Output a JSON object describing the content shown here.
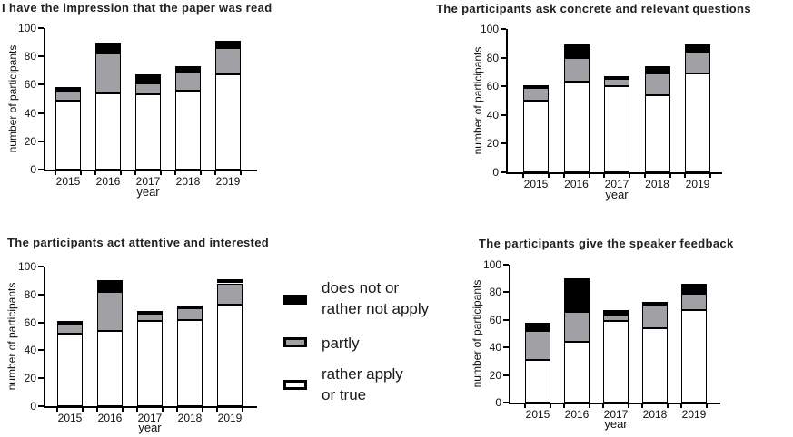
{
  "figure": {
    "background": "#ffffff",
    "palette": {
      "black": "#000000",
      "gray": "#a0a0a5",
      "white": "#ffffff",
      "axis": "#000000"
    }
  },
  "legend": {
    "position": "center of figure, right of bottom-left chart",
    "items": [
      {
        "lines": [
          "does not or",
          "rather not apply"
        ],
        "color": "#000000"
      },
      {
        "lines": [
          "partly"
        ],
        "color": "#a0a0a5"
      },
      {
        "lines": [
          "rather apply",
          "or true"
        ],
        "color": "#ffffff"
      }
    ]
  },
  "chart_data": [
    {
      "type": "bar",
      "subtype": "stacked",
      "title": "I have the impression that the paper was read",
      "xlabel": "year",
      "ylabel": "number of participants",
      "ylim": [
        0,
        100
      ],
      "yticks": [
        0,
        20,
        40,
        60,
        80,
        100
      ],
      "grid": false,
      "categories": [
        "2015",
        "2016",
        "2017",
        "2018",
        "2019"
      ],
      "series": [
        {
          "name": "rather apply or true",
          "color": "#ffffff",
          "values": [
            49,
            54,
            53,
            56,
            67
          ]
        },
        {
          "name": "partly",
          "color": "#a0a0a5",
          "values": [
            7,
            28,
            8,
            13,
            19
          ]
        },
        {
          "name": "does not or rather not apply",
          "color": "#000000",
          "values": [
            2,
            8,
            6,
            4,
            5
          ]
        }
      ],
      "totals": [
        58,
        90,
        67,
        73,
        91
      ]
    },
    {
      "type": "bar",
      "subtype": "stacked",
      "title": "The participants ask concrete and relevant questions",
      "xlabel": "year",
      "ylabel": "number of participants",
      "ylim": [
        0,
        100
      ],
      "yticks": [
        0,
        20,
        40,
        60,
        80,
        100
      ],
      "grid": false,
      "categories": [
        "2015",
        "2016",
        "2017",
        "2018",
        "2019"
      ],
      "series": [
        {
          "name": "rather apply or true",
          "color": "#ffffff",
          "values": [
            50,
            63,
            60,
            54,
            69
          ]
        },
        {
          "name": "partly",
          "color": "#a0a0a5",
          "values": [
            9,
            17,
            5,
            15,
            15
          ]
        },
        {
          "name": "does not or rather not apply",
          "color": "#000000",
          "values": [
            2,
            9,
            2,
            5,
            5
          ]
        }
      ],
      "totals": [
        61,
        89,
        67,
        74,
        89
      ]
    },
    {
      "type": "bar",
      "subtype": "stacked",
      "title": "The participants act attentive and interested",
      "xlabel": "year",
      "ylabel": "number of participants",
      "ylim": [
        0,
        100
      ],
      "yticks": [
        0,
        20,
        40,
        60,
        80,
        100
      ],
      "grid": false,
      "categories": [
        "2015",
        "2016",
        "2017",
        "2018",
        "2019"
      ],
      "series": [
        {
          "name": "rather apply or true",
          "color": "#ffffff",
          "values": [
            52,
            54,
            61,
            62,
            73
          ]
        },
        {
          "name": "partly",
          "color": "#a0a0a5",
          "values": [
            7,
            28,
            5,
            8,
            15
          ]
        },
        {
          "name": "does not or rather not apply",
          "color": "#000000",
          "values": [
            1,
            8,
            1,
            2,
            3
          ]
        }
      ],
      "totals": [
        60,
        90,
        67,
        72,
        91
      ]
    },
    {
      "type": "bar",
      "subtype": "stacked",
      "title": "The participants give the speaker feedback",
      "xlabel": "year",
      "ylabel": "number of participants",
      "ylim": [
        0,
        100
      ],
      "yticks": [
        0,
        20,
        40,
        60,
        80,
        100
      ],
      "grid": false,
      "categories": [
        "2015",
        "2016",
        "2017",
        "2018",
        "2019"
      ],
      "series": [
        {
          "name": "rather apply or true",
          "color": "#ffffff",
          "values": [
            31,
            44,
            59,
            54,
            67
          ]
        },
        {
          "name": "partly",
          "color": "#a0a0a5",
          "values": [
            21,
            22,
            5,
            17,
            12
          ]
        },
        {
          "name": "does not or rather not apply",
          "color": "#000000",
          "values": [
            6,
            24,
            3,
            2,
            7
          ]
        }
      ],
      "totals": [
        58,
        90,
        67,
        73,
        86
      ]
    }
  ]
}
